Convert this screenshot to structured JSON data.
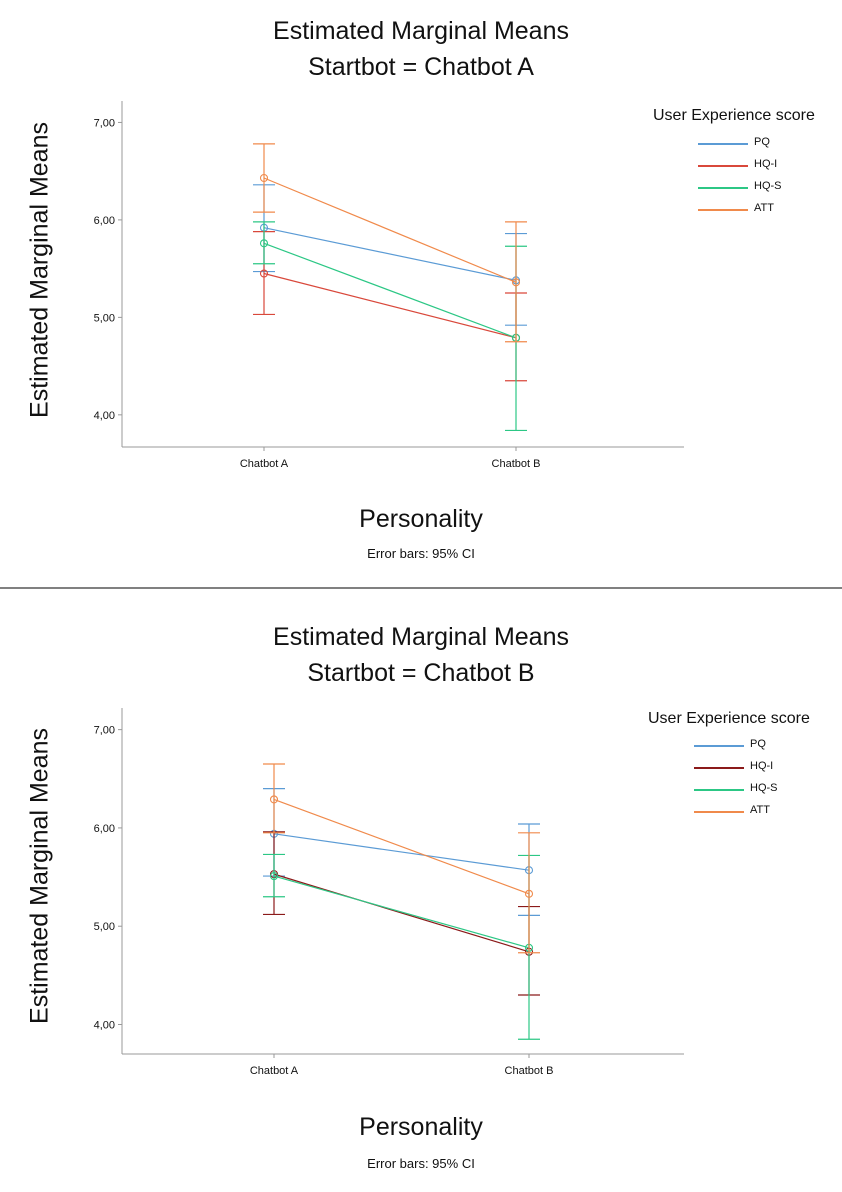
{
  "note": "Error bars: 95% CI",
  "chart_data": [
    {
      "type": "line",
      "title": "Estimated Marginal Means",
      "subtitle": "Startbot = Chatbot A",
      "xlabel": "Personality",
      "ylabel": "Estimated Marginal Means",
      "note": "Error bars: 95% CI",
      "categories": [
        "Chatbot A",
        "Chatbot B"
      ],
      "y_ticks": [
        "4,00",
        "5,00",
        "6,00",
        "7,00"
      ],
      "y_tick_values": [
        4,
        5,
        6,
        7
      ],
      "ylim": [
        3.67,
        7.22
      ],
      "grid": false,
      "legend_title": "User Experience score",
      "legend_position": "top-right",
      "series": [
        {
          "name": "PQ",
          "color": "#5b9bd5",
          "values": [
            5.92,
            5.38
          ],
          "ci_low": [
            5.47,
            4.92
          ],
          "ci_high": [
            6.36,
            5.86
          ]
        },
        {
          "name": "HQ-I",
          "color": "#d9483b",
          "values": [
            5.45,
            4.79
          ],
          "ci_low": [
            5.03,
            4.35
          ],
          "ci_high": [
            5.88,
            5.25
          ]
        },
        {
          "name": "HQ-S",
          "color": "#2cc785",
          "values": [
            5.76,
            4.79
          ],
          "ci_low": [
            5.55,
            3.84
          ],
          "ci_high": [
            5.98,
            5.73
          ]
        },
        {
          "name": "ATT",
          "color": "#f08a4b",
          "values": [
            6.43,
            5.36
          ],
          "ci_low": [
            6.08,
            4.75
          ],
          "ci_high": [
            6.78,
            5.98
          ]
        }
      ]
    },
    {
      "type": "line",
      "title": "Estimated Marginal Means",
      "subtitle": "Startbot = Chatbot B",
      "xlabel": "Personality",
      "ylabel": "Estimated Marginal Means",
      "note": "Error bars: 95% CI",
      "categories": [
        "Chatbot A",
        "Chatbot B"
      ],
      "y_ticks": [
        "4,00",
        "5,00",
        "6,00",
        "7,00"
      ],
      "y_tick_values": [
        4,
        5,
        6,
        7
      ],
      "ylim": [
        3.7,
        7.22
      ],
      "grid": false,
      "legend_title": "User Experience score",
      "legend_position": "top-right",
      "series": [
        {
          "name": "PQ",
          "color": "#5b9bd5",
          "values": [
            5.94,
            5.57
          ],
          "ci_low": [
            5.51,
            5.11
          ],
          "ci_high": [
            6.4,
            6.04
          ]
        },
        {
          "name": "HQ-I",
          "color": "#8b1a1a",
          "values": [
            5.53,
            4.74
          ],
          "ci_low": [
            5.12,
            4.3
          ],
          "ci_high": [
            5.96,
            5.2
          ]
        },
        {
          "name": "HQ-S",
          "color": "#2cc785",
          "values": [
            5.51,
            4.78
          ],
          "ci_low": [
            5.3,
            3.85
          ],
          "ci_high": [
            5.73,
            5.72
          ]
        },
        {
          "name": "ATT",
          "color": "#f08a4b",
          "values": [
            6.29,
            5.33
          ],
          "ci_low": [
            5.95,
            4.73
          ],
          "ci_high": [
            6.65,
            5.95
          ]
        }
      ]
    }
  ]
}
